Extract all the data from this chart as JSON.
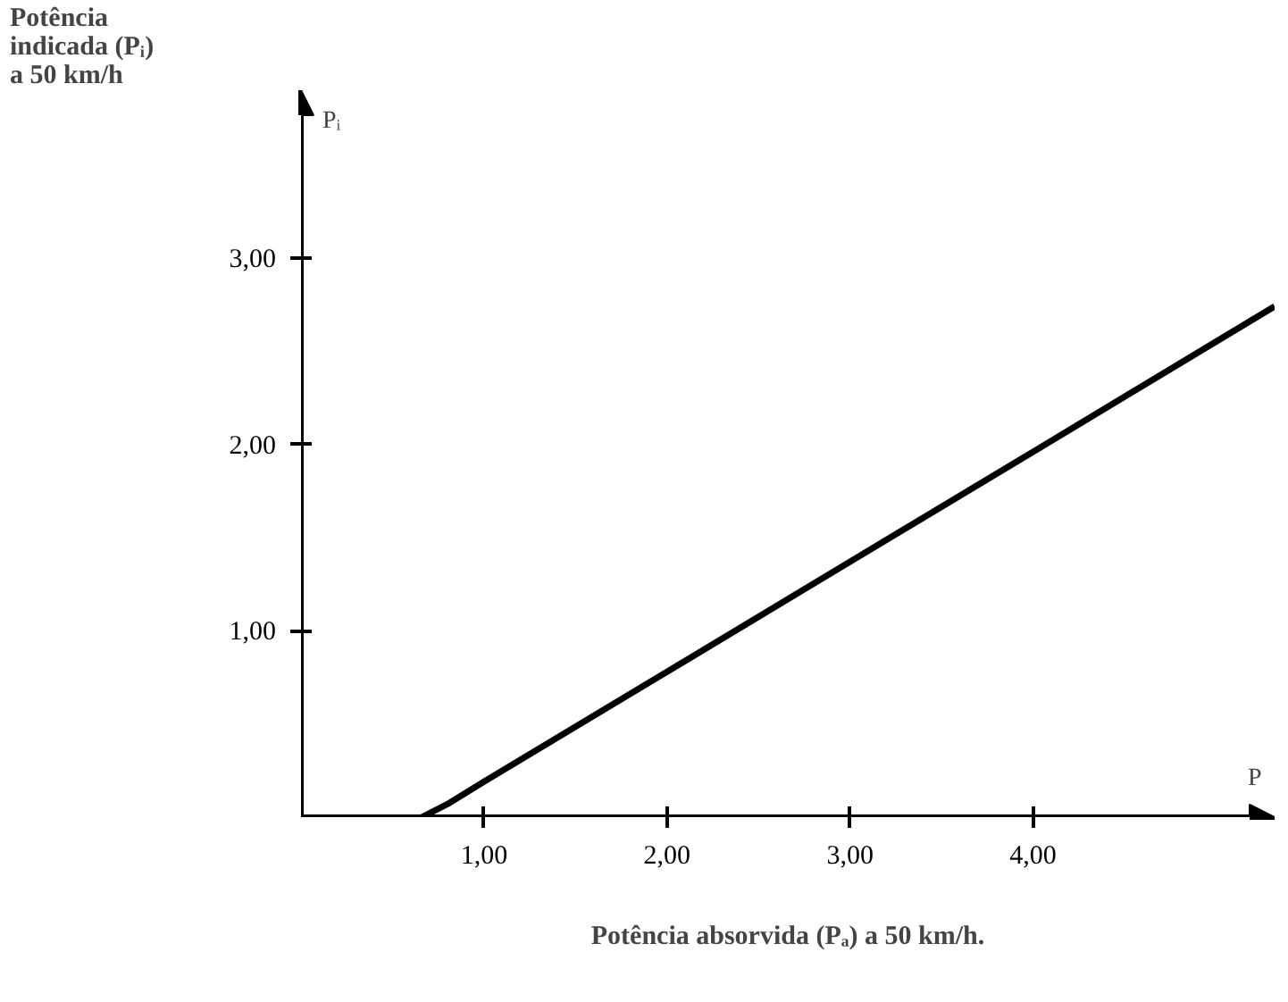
{
  "chart_data": {
    "type": "line",
    "x": [
      0.66,
      0.8,
      1.0,
      2.0,
      3.0,
      4.0,
      5.32
    ],
    "values": [
      0,
      0.07,
      0.19,
      0.78,
      1.37,
      1.96,
      2.74
    ],
    "color": "#000000",
    "ylabel": "Potência\nindicada (Pᵢ)\na 50 km/h",
    "xlabel": "Potência absorvida (Pₐ) a 50 km/h.",
    "annotations": [
      "Pᵢ",
      "P"
    ],
    "xlim": [
      0,
      5.32
    ],
    "ylim": [
      0,
      3.9
    ],
    "xticks": [
      {
        "value": 1,
        "label": "1,00"
      },
      {
        "value": 2,
        "label": "2,00"
      },
      {
        "value": 3,
        "label": "3,00"
      },
      {
        "value": 4,
        "label": "4,00"
      }
    ],
    "yticks": [
      {
        "value": 1,
        "label": "1,00"
      },
      {
        "value": 2,
        "label": "2,00"
      },
      {
        "value": 3,
        "label": "3,00"
      }
    ],
    "grid": false,
    "marker": "none",
    "line_style": "solid"
  }
}
